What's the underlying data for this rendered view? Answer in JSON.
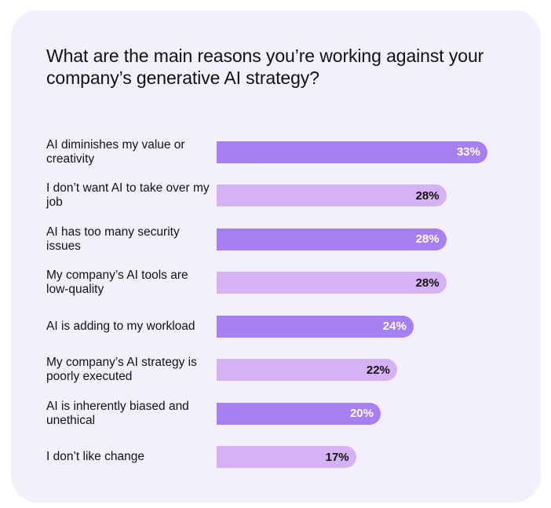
{
  "chart_data": {
    "type": "bar",
    "orientation": "horizontal",
    "title": "What are the main reasons you’re working against your company’s generative AI strategy?",
    "categories": [
      "AI diminishes my value or creativity",
      "I don’t want AI to take over my job",
      "AI has too many security issues",
      "My company’s AI tools are low-quality",
      "AI is adding to my workload",
      "My company’s AI strategy is poorly executed",
      "AI is inherently biased and unethical",
      "I don’t like change"
    ],
    "values": [
      33,
      28,
      28,
      28,
      24,
      22,
      20,
      17
    ],
    "value_labels": [
      "33%",
      "28%",
      "28%",
      "28%",
      "24%",
      "22%",
      "20%",
      "17%"
    ],
    "unit": "%",
    "colors": {
      "dark_bar": "#a67ff0",
      "light_bar": "#d4b2f4",
      "background": "#f4effd"
    },
    "bar_styles": [
      "dark",
      "light",
      "dark",
      "light",
      "dark",
      "light",
      "dark",
      "light"
    ],
    "grid": false,
    "legend": "none"
  }
}
